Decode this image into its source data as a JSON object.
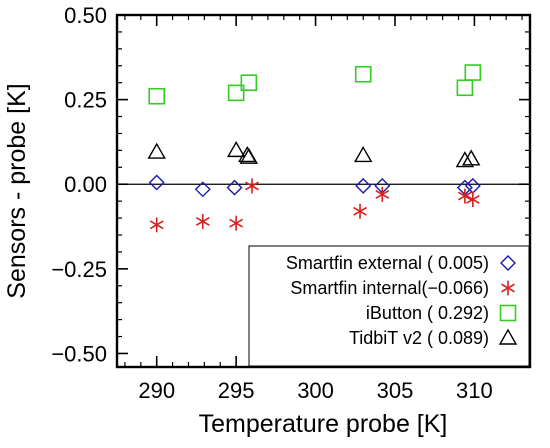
{
  "chart_data": {
    "type": "scatter",
    "xlabel": "Temperature probe [K]",
    "ylabel": "Sensors - probe [K]",
    "xlim": [
      287.5,
      313.5
    ],
    "ylim": [
      -0.54,
      0.5
    ],
    "xticks": [
      290,
      295,
      300,
      305,
      310
    ],
    "xtick_labels": [
      "290",
      "295",
      "300",
      "305",
      "310"
    ],
    "yticks": [
      -0.5,
      -0.25,
      0.0,
      0.25,
      0.5
    ],
    "ytick_labels": [
      "−0.50",
      "−0.25",
      "0.00",
      "0.25",
      "0.50"
    ],
    "reference_line_y": 0,
    "grid": false,
    "legend_position": "bottom-right",
    "series": [
      {
        "name": "Smartfin external",
        "legend_label": "Smartfin external ( 0.005)",
        "marker": "diamond",
        "color": "#1a1ab0",
        "x": [
          290.0,
          292.9,
          294.9,
          303.0,
          304.2,
          309.4,
          309.9
        ],
        "y": [
          0.005,
          -0.015,
          -0.01,
          -0.005,
          -0.005,
          -0.01,
          -0.005
        ]
      },
      {
        "name": "Smartfin internal",
        "legend_label": "Smartfin internal(−0.066)",
        "marker": "asterisk",
        "color": "#d62020",
        "x": [
          290.0,
          292.9,
          295.0,
          296.0,
          302.8,
          304.2,
          309.4,
          309.9
        ],
        "y": [
          -0.12,
          -0.11,
          -0.115,
          -0.005,
          -0.08,
          -0.03,
          -0.035,
          -0.045
        ]
      },
      {
        "name": "iButton",
        "legend_label": "iButton ( 0.292)",
        "marker": "square",
        "color": "#33cc22",
        "x": [
          290.0,
          295.0,
          295.8,
          303.0,
          309.4,
          309.9
        ],
        "y": [
          0.26,
          0.27,
          0.3,
          0.325,
          0.285,
          0.33
        ]
      },
      {
        "name": "TidbiT v2",
        "legend_label": "TidbiT v2 ( 0.089)",
        "marker": "triangle",
        "color": "#000000",
        "x": [
          290.0,
          295.0,
          295.7,
          295.8,
          303.0,
          309.4,
          309.8
        ],
        "y": [
          0.095,
          0.1,
          0.085,
          0.08,
          0.085,
          0.07,
          0.075
        ]
      }
    ]
  }
}
